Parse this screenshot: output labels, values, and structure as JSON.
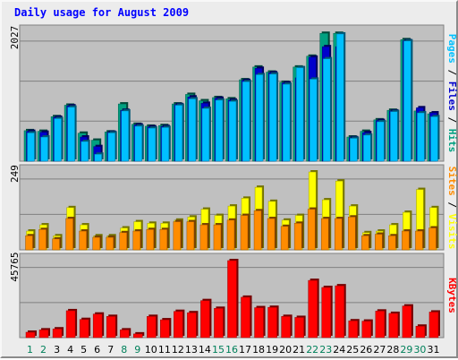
{
  "chart_data": {
    "type": "bar",
    "title": "Daily usage for August 2009",
    "categories": [
      "1",
      "2",
      "3",
      "4",
      "5",
      "6",
      "7",
      "8",
      "9",
      "10",
      "11",
      "12",
      "13",
      "14",
      "15",
      "16",
      "17",
      "18",
      "19",
      "20",
      "21",
      "22",
      "23",
      "24",
      "25",
      "26",
      "27",
      "28",
      "29",
      "30",
      "31"
    ],
    "weekend_days": [
      "1",
      "2",
      "8",
      "9",
      "15",
      "16",
      "22",
      "23",
      "29",
      "30"
    ],
    "panels": [
      {
        "name": "Pages / Files / Hits",
        "max_label": "2027",
        "ylim": [
          0,
          2027
        ],
        "series": [
          {
            "name": "Hits",
            "color": "#00a080",
            "values": [
              480,
              470,
              700,
              880,
              440,
              330,
              460,
              900,
              580,
              550,
              560,
              900,
              1050,
              950,
              1000,
              980,
              1280,
              1480,
              1400,
              1240,
              1480,
              1650,
              2010,
              2010,
              380,
              470,
              650,
              800,
              1910,
              790,
              745
            ]
          },
          {
            "name": "Files",
            "color": "#0000cc",
            "values": [
              470,
              455,
              690,
              870,
              380,
              230,
              455,
              800,
              570,
              540,
              545,
              890,
              1010,
              910,
              990,
              960,
              1270,
              1460,
              1390,
              1230,
              1310,
              1635,
              1800,
              1800,
              370,
              450,
              640,
              790,
              1895,
              840,
              760
            ]
          },
          {
            "name": "Pages",
            "color": "#00c0ff",
            "values": [
              445,
              380,
              670,
              850,
              310,
              110,
              445,
              790,
              550,
              520,
              530,
              880,
              980,
              830,
              960,
              940,
              1250,
              1360,
              1370,
              1210,
              1470,
              1290,
              1610,
              2000,
              360,
              410,
              620,
              780,
              1890,
              760,
              700
            ]
          }
        ]
      },
      {
        "name": "Sites / Visits",
        "max_label": "249",
        "ylim": [
          0,
          249
        ],
        "series": [
          {
            "name": "Visits",
            "color": "#ffff00",
            "values": [
              60,
              80,
              45,
              135,
              80,
              45,
              45,
              70,
              90,
              85,
              85,
              95,
              105,
              130,
              110,
              140,
              165,
              200,
              155,
              95,
              110,
              250,
              160,
              220,
              140,
              55,
              60,
              80,
              120,
              193,
              135
            ]
          },
          {
            "name": "Sites",
            "color": "#ff8c00",
            "values": [
              45,
              65,
              35,
              100,
              60,
              40,
              40,
              55,
              60,
              65,
              65,
              90,
              90,
              80,
              80,
              95,
              110,
              125,
              100,
              75,
              85,
              130,
              100,
              100,
              105,
              45,
              50,
              45,
              60,
              60,
              70
            ]
          }
        ]
      },
      {
        "name": "KBytes",
        "max_label": "45765",
        "ylim": [
          0,
          45765
        ],
        "series": [
          {
            "name": "KBytes",
            "color": "#ff0000",
            "values": [
              3200,
              4600,
              5200,
              16000,
              10800,
              14000,
              12600,
              4600,
              2200,
              12600,
              10600,
              15600,
              14800,
              22000,
              17400,
              45765,
              24000,
              17800,
              18000,
              12600,
              12000,
              34000,
              29800,
              30800,
              10000,
              9800,
              15800,
              14400,
              18800,
              6800,
              15200
            ]
          }
        ]
      }
    ]
  }
}
